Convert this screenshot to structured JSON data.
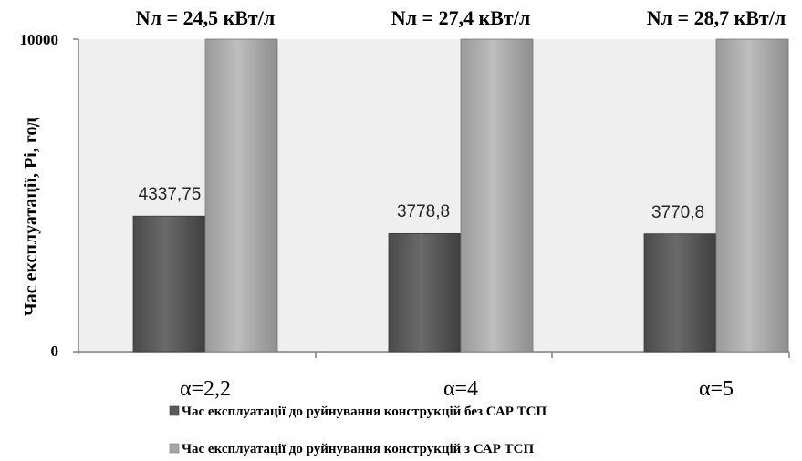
{
  "chart_data": {
    "type": "bar",
    "categories": [
      "α=2,2",
      "α=4",
      "α=5"
    ],
    "top_annotations": [
      "Nл = 24,5 кВт/л",
      "Nл = 27,4 кВт/л",
      "Nл = 28,7 кВт/л"
    ],
    "ylabel": "Час експлуатації, Pi, год",
    "ylim": [
      0,
      10000
    ],
    "yticks": [
      "0",
      "10000"
    ],
    "grid": false,
    "legend_position": "bottom",
    "series": [
      {
        "name": "Час експлуатації до руйнування конструкцій без САР ТСП",
        "values": [
          4337.75,
          3778.8,
          3770.8
        ],
        "data_labels": [
          "4337,75",
          "3778,8",
          "3770,8"
        ],
        "color": "#595959"
      },
      {
        "name": "Час експлуатації до руйнування конструкцій з САР ТСП",
        "values": [
          10000,
          10000,
          10000
        ],
        "color": "#a6a6a6"
      }
    ]
  }
}
